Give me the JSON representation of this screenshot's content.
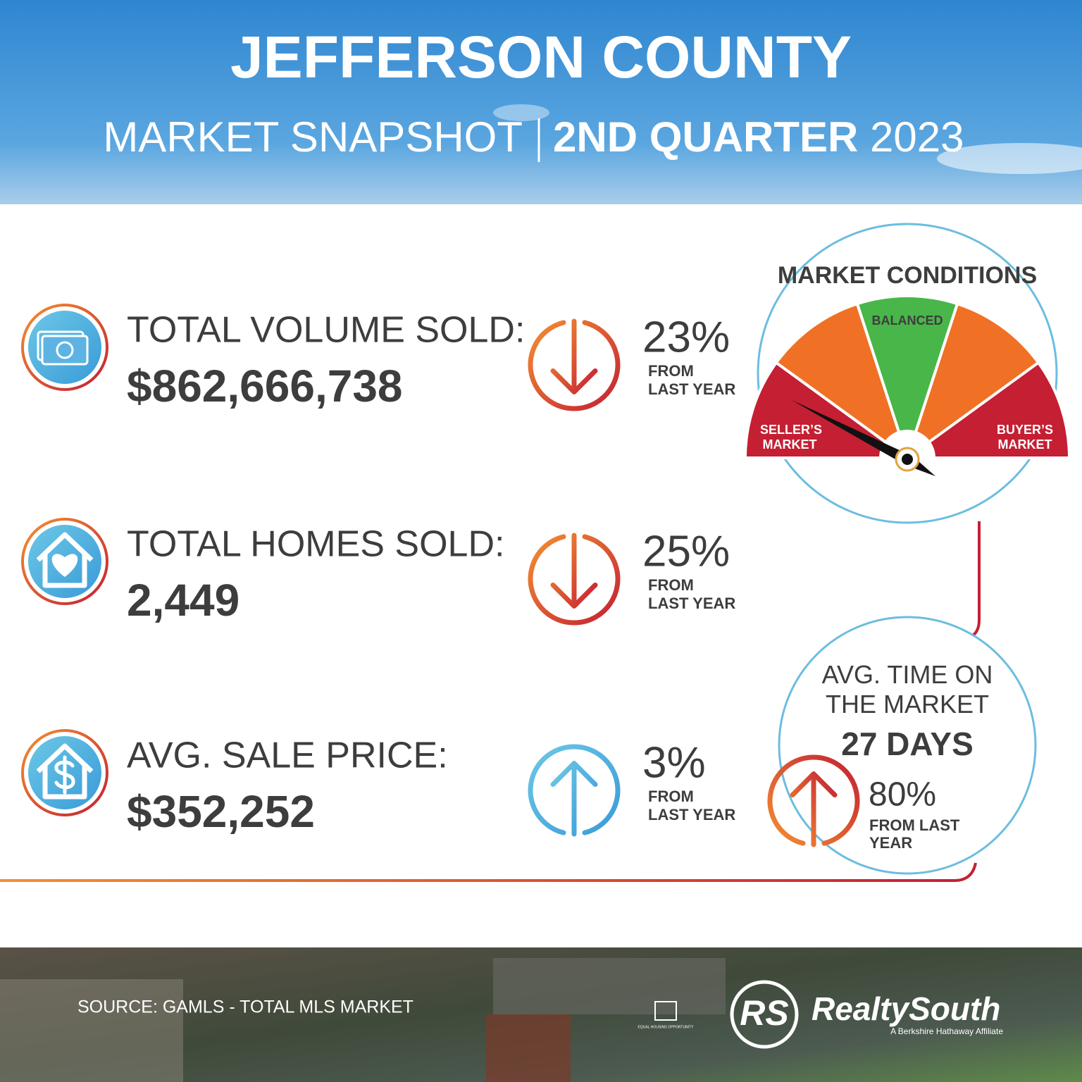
{
  "header": {
    "title": "JEFFERSON COUNTY",
    "subtitle": {
      "main": "MARKET SNAPSHOT",
      "quarter": "2ND QUARTER",
      "year": "2023"
    }
  },
  "stats": [
    {
      "label": "TOTAL VOLUME SOLD:",
      "value": "$862,666,738",
      "change": "23%",
      "change_label": [
        "FROM",
        "LAST YEAR"
      ],
      "direction": "down"
    },
    {
      "label": "TOTAL HOMES SOLD:",
      "value": "2,449",
      "change": "25%",
      "change_label": [
        "FROM",
        "LAST YEAR"
      ],
      "direction": "down"
    },
    {
      "label": "AVG. SALE PRICE:",
      "value": "$352,252",
      "change": "3%",
      "change_label": [
        "FROM",
        "LAST YEAR"
      ],
      "direction": "up"
    }
  ],
  "gauge": {
    "title": "MARKET CONDITIONS",
    "left": [
      "SELLER’S",
      "MARKET"
    ],
    "middle": "BALANCED",
    "right": [
      "BUYER’S",
      "MARKET"
    ]
  },
  "time_on_market": {
    "label": [
      "AVG. TIME ON",
      "THE MARKET"
    ],
    "value": "27 DAYS",
    "change": "80%",
    "change_label": [
      "FROM LAST",
      "YEAR"
    ],
    "direction": "up"
  },
  "footer": {
    "source": "SOURCE: GAMLS - TOTAL MLS MARKET",
    "equal_housing": "EQUAL HOUSING OPPORTUNITY",
    "logo_mark": "RS",
    "brand": "RealtySouth",
    "tagline": "A Berkshire Hathaway Affiliate"
  }
}
